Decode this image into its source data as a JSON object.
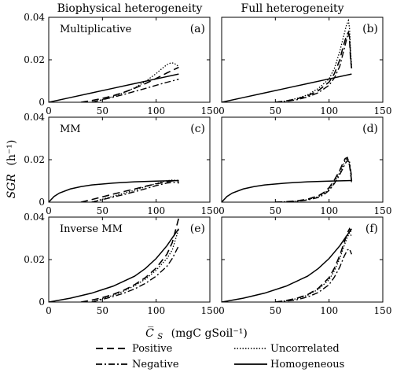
{
  "figure": {
    "column_titles": [
      "Biophysical heterogeneity",
      "Full heterogeneity"
    ],
    "ylabel": "SGR",
    "ylabel_unit": "(h⁻¹)",
    "xlabel": "C̅",
    "xlabel_sub": "S",
    "xlabel_unit": "(mgC  gSoil⁻¹)"
  },
  "legend": {
    "entries": [
      {
        "key": "positive",
        "label": "Positive",
        "style": "dashed"
      },
      {
        "key": "uncorrelated",
        "label": "Uncorrelated",
        "style": "dotted"
      },
      {
        "key": "negative",
        "label": "Negative",
        "style": "dashdot"
      },
      {
        "key": "homogeneous",
        "label": "Homogeneous",
        "style": "solid"
      }
    ]
  },
  "chart_data": [
    {
      "type": "line",
      "panel": "(a)",
      "row_label": "Multiplicative",
      "xlim": [
        0,
        150
      ],
      "ylim": [
        0,
        0.04
      ],
      "xticks": [
        0,
        50,
        100,
        150
      ],
      "yticks": [
        0,
        0.02,
        0.04
      ],
      "xtick_labels": [
        "0",
        "50",
        "100",
        "150"
      ],
      "ytick_labels": [
        "0",
        "0.02",
        "0.04"
      ],
      "series": [
        {
          "key": "homogeneous",
          "x": [
            0,
            20,
            40,
            60,
            80,
            100,
            121
          ],
          "y": [
            0,
            0.0022,
            0.0044,
            0.0066,
            0.0088,
            0.011,
            0.0133
          ]
        },
        {
          "key": "positive",
          "x": [
            30,
            40,
            50,
            60,
            70,
            80,
            90,
            100,
            110,
            115,
            120,
            121
          ],
          "y": [
            0,
            0.0008,
            0.0018,
            0.0031,
            0.0047,
            0.0066,
            0.0088,
            0.0112,
            0.0138,
            0.015,
            0.0162,
            0.0165
          ]
        },
        {
          "key": "uncorrelated",
          "x": [
            40,
            50,
            60,
            70,
            80,
            90,
            100,
            105,
            110,
            114,
            117,
            120,
            121
          ],
          "y": [
            0,
            0.0012,
            0.0027,
            0.0045,
            0.0068,
            0.0098,
            0.0135,
            0.0157,
            0.0177,
            0.0186,
            0.0183,
            0.0172,
            0.0165
          ]
        },
        {
          "key": "negative",
          "x": [
            40,
            50,
            60,
            70,
            80,
            90,
            100,
            110,
            120,
            121
          ],
          "y": [
            0,
            0.0012,
            0.0024,
            0.0037,
            0.0051,
            0.0065,
            0.008,
            0.0094,
            0.0107,
            0.0108
          ]
        }
      ]
    },
    {
      "type": "line",
      "panel": "(b)",
      "row_label": "",
      "xlim": [
        0,
        150
      ],
      "ylim": [
        0,
        0.04
      ],
      "xticks": [
        0,
        50,
        100,
        150
      ],
      "yticks": [
        0,
        0.02,
        0.04
      ],
      "xtick_labels": [
        "0",
        "50",
        "100",
        "150"
      ],
      "ytick_labels": [
        "",
        "",
        ""
      ],
      "series": [
        {
          "key": "homogeneous",
          "x": [
            0,
            20,
            40,
            60,
            80,
            100,
            121
          ],
          "y": [
            0,
            0.0022,
            0.0044,
            0.0066,
            0.0088,
            0.011,
            0.0133
          ]
        },
        {
          "key": "positive",
          "x": [
            50,
            60,
            70,
            80,
            90,
            100,
            105,
            110,
            113,
            116,
            118,
            119,
            120,
            121
          ],
          "y": [
            0,
            0.0006,
            0.0016,
            0.003,
            0.0055,
            0.0095,
            0.0135,
            0.02,
            0.026,
            0.031,
            0.033,
            0.03,
            0.02,
            0.016
          ]
        },
        {
          "key": "uncorrelated",
          "x": [
            50,
            60,
            70,
            80,
            90,
            100,
            105,
            110,
            113,
            116,
            118,
            119,
            120,
            121
          ],
          "y": [
            0,
            0.0006,
            0.0018,
            0.0035,
            0.0065,
            0.011,
            0.016,
            0.024,
            0.03,
            0.036,
            0.0385,
            0.035,
            0.024,
            0.017
          ]
        },
        {
          "key": "negative",
          "x": [
            50,
            60,
            70,
            80,
            90,
            100,
            105,
            110,
            113,
            116,
            118,
            119,
            120,
            121
          ],
          "y": [
            0,
            0.0004,
            0.0012,
            0.0025,
            0.0045,
            0.008,
            0.0115,
            0.017,
            0.023,
            0.029,
            0.0325,
            0.031,
            0.022,
            0.015
          ]
        }
      ]
    },
    {
      "type": "line",
      "panel": "(c)",
      "row_label": "MM",
      "xlim": [
        0,
        150
      ],
      "ylim": [
        0,
        0.04
      ],
      "xticks": [
        0,
        50,
        100,
        150
      ],
      "yticks": [
        0,
        0.02,
        0.04
      ],
      "xtick_labels": [
        "0",
        "50",
        "100",
        "150"
      ],
      "ytick_labels": [
        "0",
        "0.02",
        "0.04"
      ],
      "series": [
        {
          "key": "homogeneous",
          "x": [
            0,
            5,
            10,
            20,
            30,
            40,
            60,
            80,
            100,
            121
          ],
          "y": [
            0,
            0.0027,
            0.0043,
            0.0062,
            0.0073,
            0.0081,
            0.009,
            0.0096,
            0.0099,
            0.0102
          ]
        },
        {
          "key": "positive",
          "x": [
            30,
            40,
            50,
            60,
            70,
            80,
            90,
            100,
            110,
            115,
            120,
            121
          ],
          "y": [
            0,
            0.0012,
            0.0025,
            0.0038,
            0.005,
            0.0062,
            0.0075,
            0.0086,
            0.0096,
            0.01,
            0.0103,
            0.0098
          ]
        },
        {
          "key": "uncorrelated",
          "x": [
            40,
            50,
            60,
            70,
            80,
            90,
            100,
            110,
            115,
            120,
            121
          ],
          "y": [
            0,
            0.0014,
            0.0028,
            0.0042,
            0.0056,
            0.0072,
            0.0088,
            0.0101,
            0.0104,
            0.0102,
            0.0092
          ]
        },
        {
          "key": "negative",
          "x": [
            40,
            50,
            60,
            70,
            80,
            90,
            100,
            110,
            120,
            121
          ],
          "y": [
            0,
            0.0012,
            0.0024,
            0.0036,
            0.0049,
            0.0063,
            0.0078,
            0.009,
            0.0095,
            0.0088
          ]
        }
      ]
    },
    {
      "type": "line",
      "panel": "(d)",
      "row_label": "",
      "xlim": [
        0,
        150
      ],
      "ylim": [
        0,
        0.04
      ],
      "xticks": [
        0,
        50,
        100,
        150
      ],
      "yticks": [
        0,
        0.02,
        0.04
      ],
      "xtick_labels": [
        "0",
        "50",
        "100",
        "150"
      ],
      "ytick_labels": [
        "",
        "",
        ""
      ],
      "series": [
        {
          "key": "homogeneous",
          "x": [
            0,
            5,
            10,
            20,
            30,
            40,
            60,
            80,
            100,
            121
          ],
          "y": [
            0,
            0.0027,
            0.0043,
            0.0062,
            0.0073,
            0.0081,
            0.009,
            0.0096,
            0.0099,
            0.0102
          ]
        },
        {
          "key": "positive",
          "x": [
            50,
            60,
            70,
            80,
            90,
            95,
            100,
            105,
            110,
            113,
            115,
            117,
            119,
            121
          ],
          "y": [
            0,
            0.0002,
            0.0006,
            0.0014,
            0.003,
            0.0045,
            0.0068,
            0.0105,
            0.015,
            0.0185,
            0.0205,
            0.021,
            0.0175,
            0.01
          ]
        },
        {
          "key": "uncorrelated",
          "x": [
            50,
            60,
            70,
            80,
            90,
            95,
            100,
            105,
            110,
            113,
            115,
            117,
            119,
            121
          ],
          "y": [
            0,
            0.0002,
            0.0005,
            0.0012,
            0.0026,
            0.004,
            0.006,
            0.0095,
            0.014,
            0.0172,
            0.0195,
            0.0205,
            0.019,
            0.009
          ]
        },
        {
          "key": "negative",
          "x": [
            50,
            60,
            70,
            80,
            90,
            95,
            100,
            105,
            110,
            113,
            115,
            117,
            119,
            121
          ],
          "y": [
            0,
            0.0001,
            0.0004,
            0.001,
            0.0022,
            0.0035,
            0.0055,
            0.0088,
            0.013,
            0.016,
            0.0182,
            0.0195,
            0.0188,
            0.012
          ]
        }
      ]
    },
    {
      "type": "line",
      "panel": "(e)",
      "row_label": "Inverse MM",
      "xlim": [
        0,
        150
      ],
      "ylim": [
        0,
        0.04
      ],
      "xticks": [
        0,
        50,
        100,
        150
      ],
      "yticks": [
        0,
        0.02,
        0.04
      ],
      "xtick_labels": [
        "0",
        "50",
        "100",
        "150"
      ],
      "ytick_labels": [
        "0",
        "0.02",
        "0.04"
      ],
      "series": [
        {
          "key": "homogeneous",
          "x": [
            0,
            20,
            40,
            60,
            80,
            90,
            100,
            110,
            115,
            121
          ],
          "y": [
            0,
            0.0018,
            0.0042,
            0.0075,
            0.0122,
            0.0158,
            0.0205,
            0.0265,
            0.0302,
            0.0345
          ]
        },
        {
          "key": "positive",
          "x": [
            30,
            40,
            50,
            60,
            70,
            80,
            90,
            100,
            110,
            115,
            121
          ],
          "y": [
            0,
            0.0009,
            0.0021,
            0.0036,
            0.0056,
            0.0082,
            0.0115,
            0.016,
            0.0225,
            0.028,
            0.0395
          ]
        },
        {
          "key": "uncorrelated",
          "x": [
            40,
            50,
            60,
            70,
            80,
            90,
            100,
            110,
            115,
            121
          ],
          "y": [
            0,
            0.0016,
            0.0032,
            0.0052,
            0.0077,
            0.0108,
            0.015,
            0.0205,
            0.0245,
            0.0345
          ]
        },
        {
          "key": "negative",
          "x": [
            40,
            50,
            60,
            70,
            80,
            90,
            100,
            110,
            115,
            121
          ],
          "y": [
            0,
            0.0013,
            0.0026,
            0.0042,
            0.0062,
            0.0088,
            0.0122,
            0.0168,
            0.0205,
            0.0265
          ]
        }
      ]
    },
    {
      "type": "line",
      "panel": "(f)",
      "row_label": "",
      "xlim": [
        0,
        150
      ],
      "ylim": [
        0,
        0.04
      ],
      "xticks": [
        0,
        50,
        100,
        150
      ],
      "yticks": [
        0,
        0.02,
        0.04
      ],
      "xtick_labels": [
        "0",
        "50",
        "100",
        "150"
      ],
      "ytick_labels": [
        "",
        "",
        ""
      ],
      "series": [
        {
          "key": "homogeneous",
          "x": [
            0,
            20,
            40,
            60,
            80,
            90,
            100,
            110,
            115,
            121
          ],
          "y": [
            0,
            0.0018,
            0.0042,
            0.0075,
            0.0122,
            0.0158,
            0.0205,
            0.0265,
            0.0302,
            0.0345
          ]
        },
        {
          "key": "positive",
          "x": [
            50,
            60,
            70,
            80,
            90,
            100,
            105,
            110,
            114,
            117,
            119,
            121
          ],
          "y": [
            0,
            0.0007,
            0.0018,
            0.0035,
            0.0065,
            0.0115,
            0.016,
            0.022,
            0.028,
            0.0325,
            0.0345,
            0.0325
          ]
        },
        {
          "key": "uncorrelated",
          "x": [
            50,
            60,
            70,
            80,
            90,
            100,
            105,
            110,
            114,
            117,
            119,
            121
          ],
          "y": [
            0,
            0.0006,
            0.0016,
            0.0032,
            0.006,
            0.0105,
            0.0148,
            0.0205,
            0.0265,
            0.0305,
            0.0325,
            0.031
          ]
        },
        {
          "key": "negative",
          "x": [
            50,
            60,
            70,
            80,
            90,
            100,
            105,
            110,
            114,
            117,
            119,
            121
          ],
          "y": [
            0,
            0.0004,
            0.0011,
            0.0024,
            0.0045,
            0.0082,
            0.0118,
            0.0165,
            0.0215,
            0.0245,
            0.025,
            0.0225
          ]
        }
      ]
    }
  ]
}
